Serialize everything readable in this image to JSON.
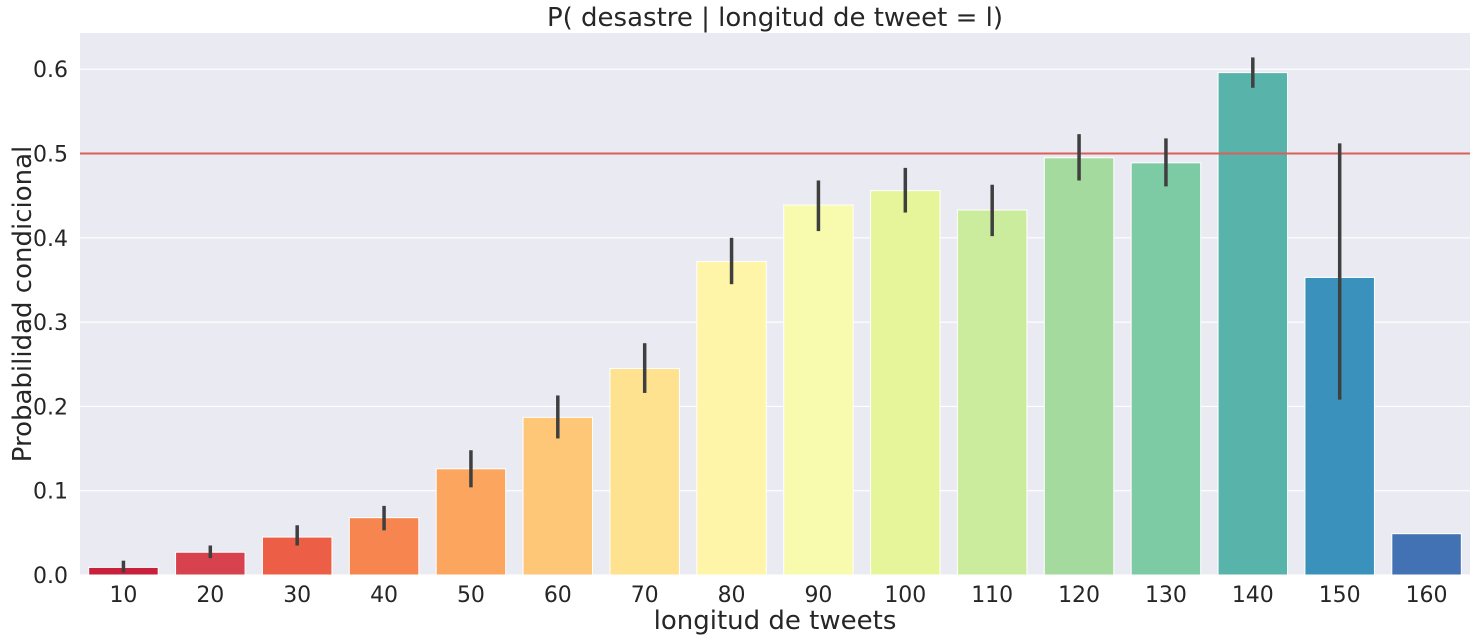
{
  "chart_data": {
    "type": "bar",
    "title": "P( desastre | longitud de tweet = l)",
    "xlabel": "longitud de tweets",
    "ylabel": "Probabilidad condicional",
    "categories": [
      "10",
      "20",
      "30",
      "40",
      "50",
      "60",
      "70",
      "80",
      "90",
      "100",
      "110",
      "120",
      "130",
      "140",
      "150",
      "160"
    ],
    "values": [
      0.009,
      0.027,
      0.045,
      0.068,
      0.126,
      0.187,
      0.245,
      0.372,
      0.439,
      0.456,
      0.433,
      0.495,
      0.489,
      0.596,
      0.353,
      0.049
    ],
    "error_low": [
      0.003,
      0.02,
      0.035,
      0.053,
      0.104,
      0.162,
      0.216,
      0.345,
      0.408,
      0.43,
      0.402,
      0.468,
      0.461,
      0.578,
      0.208,
      null
    ],
    "error_high": [
      0.017,
      0.035,
      0.059,
      0.082,
      0.148,
      0.213,
      0.275,
      0.4,
      0.468,
      0.483,
      0.463,
      0.523,
      0.518,
      0.614,
      0.512,
      null
    ],
    "colors": [
      "#c7213c",
      "#d8424f",
      "#ec5e45",
      "#f6854f",
      "#fca55f",
      "#fec677",
      "#fee28f",
      "#fff5a8",
      "#f8fbae",
      "#e7f59a",
      "#cbeb9d",
      "#a5da9f",
      "#7dcba4",
      "#58b3aa",
      "#3a91bc",
      "#4272b3"
    ],
    "yticks": [
      "0.0",
      "0.1",
      "0.2",
      "0.3",
      "0.4",
      "0.5",
      "0.6"
    ],
    "ylim": [
      0,
      0.643
    ],
    "reference_line": 0.5,
    "reference_line_color": "#d9605a",
    "background_color": "#eaeaf2",
    "grid": true,
    "legend": "none"
  }
}
